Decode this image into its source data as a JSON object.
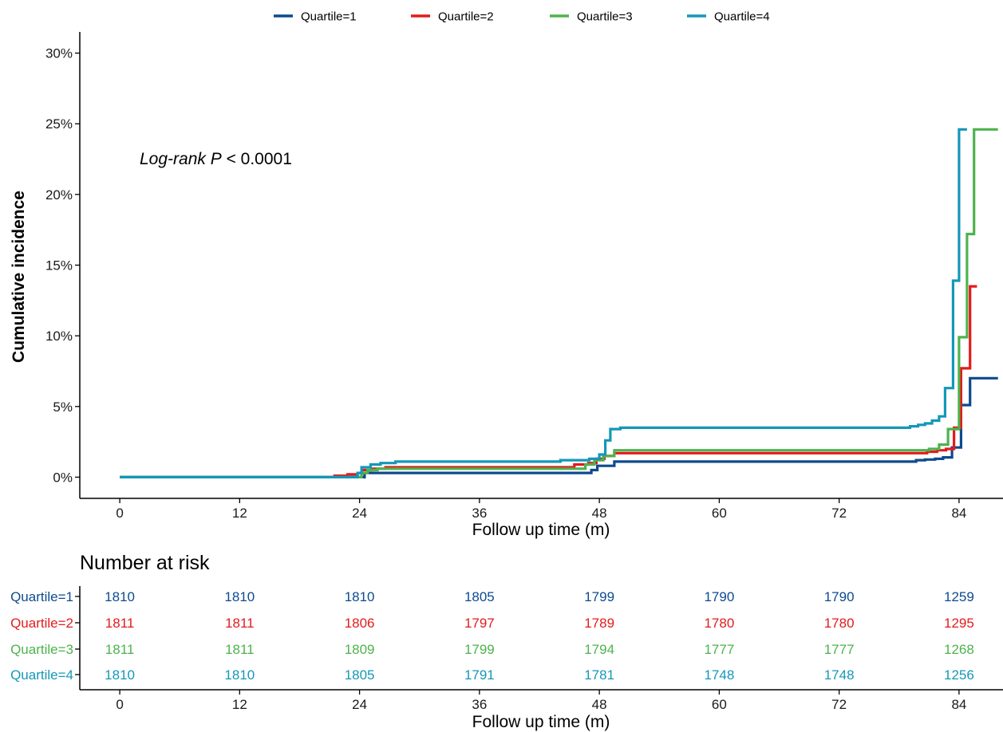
{
  "chart_data": [
    {
      "type": "line",
      "step": true,
      "xlabel": "Follow up time (m)",
      "ylabel": "Cumulative incidence",
      "xticks": [
        0,
        12,
        24,
        36,
        48,
        60,
        72,
        84
      ],
      "yticks": [
        0,
        5,
        10,
        15,
        20,
        25,
        30
      ],
      "ytick_labels": [
        "0%",
        "5%",
        "10%",
        "15%",
        "20%",
        "25%",
        "30%"
      ],
      "xlim": [
        -4.0,
        88.4
      ],
      "ylim": [
        -1.5,
        31.5
      ],
      "grid": false,
      "legend_position": "top",
      "annotation": {
        "italic": "Log-rank P",
        "rest": " < 0.0001"
      },
      "series": [
        {
          "name": "Quartile=1",
          "color": "#0d4a8f",
          "x": [
            0,
            24,
            24.5,
            45.7,
            47.2,
            47.8,
            49.5,
            78.5,
            79.7,
            80.6,
            81.6,
            82.4,
            83.3,
            84.2,
            85.1,
            87.9
          ],
          "y": [
            0,
            0,
            0.3,
            0.3,
            0.5,
            0.8,
            1.1,
            1.1,
            1.2,
            1.25,
            1.3,
            1.4,
            2.1,
            5.1,
            7.0,
            7.0
          ]
        },
        {
          "name": "Quartile=2",
          "color": "#e41a1c",
          "x": [
            0,
            20,
            21.5,
            22.8,
            23.8,
            24.2,
            25.2,
            26.6,
            43.8,
            45.5,
            46.9,
            47.7,
            48.5,
            49.5,
            79.8,
            80.8,
            81.8,
            82.7,
            83.5,
            84.2,
            85.1,
            85.8
          ],
          "y": [
            0,
            0,
            0.1,
            0.2,
            0.3,
            0.5,
            0.6,
            0.7,
            0.7,
            0.9,
            1.0,
            1.3,
            1.5,
            1.7,
            1.7,
            1.8,
            1.9,
            2.0,
            3.5,
            7.7,
            13.5,
            13.5
          ]
        },
        {
          "name": "Quartile=3",
          "color": "#4db34d",
          "x": [
            0,
            23.8,
            24.2,
            24.8,
            25.8,
            45.2,
            46.6,
            47.5,
            48.4,
            49.5,
            79.8,
            81.0,
            82.0,
            82.9,
            84.0,
            84.8,
            85.5,
            86.6,
            87.9
          ],
          "y": [
            0,
            0,
            0.3,
            0.5,
            0.6,
            0.6,
            0.9,
            1.2,
            1.5,
            1.9,
            1.9,
            2.0,
            2.3,
            3.4,
            9.9,
            17.2,
            24.6,
            24.6,
            24.6
          ]
        },
        {
          "name": "Quartile=4",
          "color": "#1597b8",
          "x": [
            0,
            22.8,
            23.8,
            24.2,
            25.1,
            26.1,
            27.6,
            41.4,
            44.1,
            47.0,
            48.0,
            48.6,
            49.1,
            50.1,
            77.6,
            79.1,
            79.9,
            80.6,
            81.3,
            82.0,
            82.6,
            83.4,
            84.0,
            84.8
          ],
          "y": [
            0,
            0,
            0.3,
            0.7,
            0.9,
            1.0,
            1.1,
            1.1,
            1.2,
            1.3,
            1.6,
            2.6,
            3.4,
            3.5,
            3.5,
            3.6,
            3.7,
            3.8,
            4.0,
            4.3,
            6.3,
            13.9,
            24.6,
            24.6
          ]
        }
      ]
    },
    {
      "type": "table",
      "title": "Number at risk",
      "xlabel": "Follow up time (m)",
      "times": [
        0,
        12,
        24,
        36,
        48,
        60,
        72,
        84
      ],
      "xlim": [
        -4.0,
        88.4
      ],
      "rows": [
        {
          "label": "Quartile=1",
          "color": "#0d4a8f",
          "values": [
            1810,
            1810,
            1810,
            1805,
            1799,
            1790,
            1790,
            1259
          ]
        },
        {
          "label": "Quartile=2",
          "color": "#e41a1c",
          "values": [
            1811,
            1811,
            1806,
            1797,
            1789,
            1780,
            1780,
            1295
          ]
        },
        {
          "label": "Quartile=3",
          "color": "#4db34d",
          "values": [
            1811,
            1811,
            1809,
            1799,
            1794,
            1777,
            1777,
            1268
          ]
        },
        {
          "label": "Quartile=4",
          "color": "#1597b8",
          "values": [
            1810,
            1810,
            1805,
            1791,
            1781,
            1748,
            1748,
            1256
          ]
        }
      ]
    }
  ]
}
